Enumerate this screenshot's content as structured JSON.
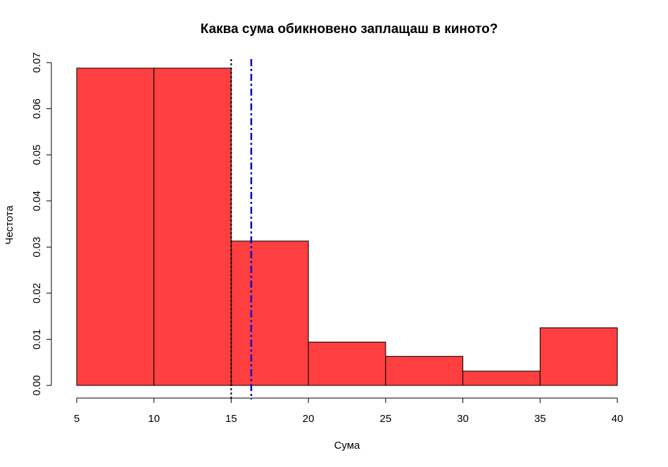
{
  "chart_data": {
    "type": "bar",
    "title": "Каква сума обикновено заплащаш в киното?",
    "xlabel": "Сума",
    "ylabel": "Честота",
    "bins": [
      {
        "from": 5,
        "to": 10,
        "value": 0.0688
      },
      {
        "from": 10,
        "to": 15,
        "value": 0.0688
      },
      {
        "from": 15,
        "to": 20,
        "value": 0.0313
      },
      {
        "from": 20,
        "to": 25,
        "value": 0.0094
      },
      {
        "from": 25,
        "to": 30,
        "value": 0.0063
      },
      {
        "from": 30,
        "to": 35,
        "value": 0.0031
      },
      {
        "from": 35,
        "to": 40,
        "value": 0.0125
      }
    ],
    "xlim": [
      5,
      40
    ],
    "ylim": [
      0,
      0.07
    ],
    "x_ticks": [
      "5",
      "10",
      "15",
      "20",
      "25",
      "30",
      "35",
      "40"
    ],
    "y_ticks": [
      "0.00",
      "0.01",
      "0.02",
      "0.03",
      "0.04",
      "0.05",
      "0.06",
      "0.07"
    ],
    "reference_lines": [
      {
        "x": 15,
        "style": "dotted",
        "color": "#000000"
      },
      {
        "x": 16.3,
        "style": "dashdot",
        "color": "#0000CD"
      }
    ],
    "bar_color": "#FF3F3F",
    "grid": false
  }
}
